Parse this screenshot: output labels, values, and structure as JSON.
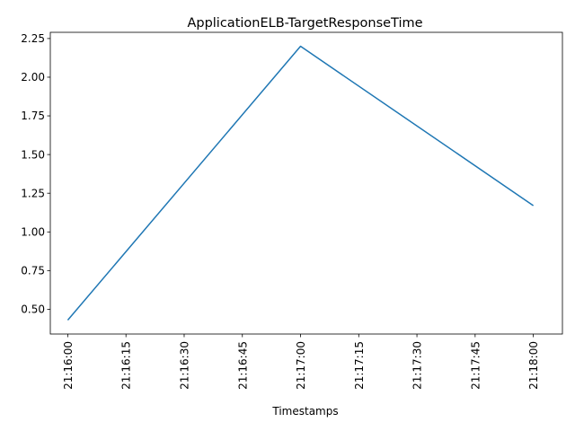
{
  "chart_data": {
    "type": "line",
    "title": "ApplicationELB-TargetResponseTime",
    "xlabel": "Timestamps",
    "ylabel": "",
    "x_ticks": [
      "21:16:00",
      "21:16:15",
      "21:16:30",
      "21:16:45",
      "21:17:00",
      "21:17:15",
      "21:17:30",
      "21:17:45",
      "21:18:00"
    ],
    "y_ticks": [
      "0.50",
      "0.75",
      "1.00",
      "1.25",
      "1.50",
      "1.75",
      "2.00",
      "2.25"
    ],
    "xlim": [
      "21:15:55.5",
      "21:18:07.5"
    ],
    "ylim": [
      0.34,
      2.29
    ],
    "grid": false,
    "legend": "none",
    "series": [
      {
        "x": [
          "21:16:00",
          "21:17:00",
          "21:18:00"
        ],
        "values": [
          0.43,
          2.2,
          1.17
        ],
        "color": "#1f77b4"
      }
    ]
  }
}
